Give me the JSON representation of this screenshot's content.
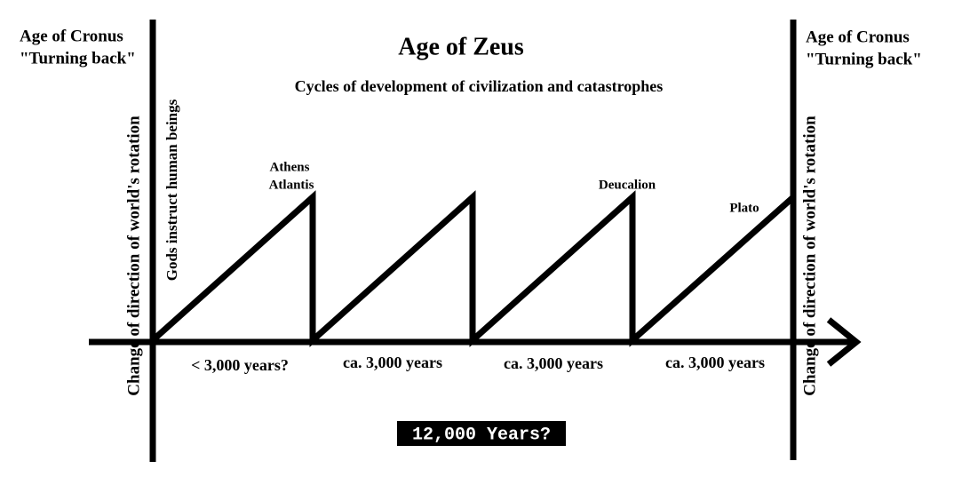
{
  "left_label": [
    "Age of Cronus",
    "\"Turning back\""
  ],
  "right_label": [
    "Age of Cronus",
    "\"Turning back\""
  ],
  "title": "Age of Zeus",
  "subtitle": "Cycles of development of civilization and catastrophes",
  "left_vertical": "Change of direction of world's rotation",
  "right_vertical": "Change of direction of world's rotation",
  "gods_label": "Gods instruct human beings",
  "peak_labels": [
    "Athens",
    "Atlantis",
    "Deucalion",
    "Plato"
  ],
  "periods": [
    "< 3,000 years?",
    "ca. 3,000 years",
    "ca. 3,000 years",
    "ca. 3,000 years"
  ],
  "total": "12,000 Years?"
}
